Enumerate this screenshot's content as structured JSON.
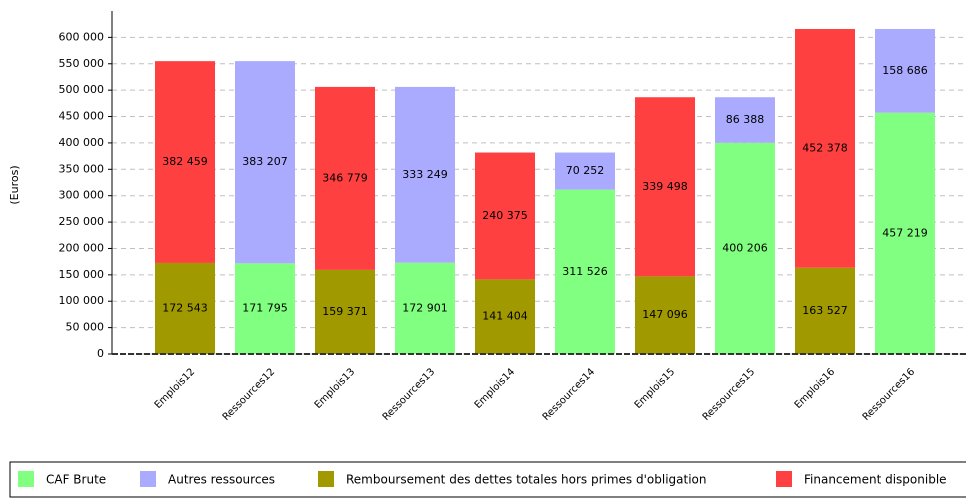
{
  "chart_data": {
    "type": "stacked_bar",
    "ylabel": "(Euros)",
    "categories": [
      "Emplois12",
      "Ressources12",
      "Emplois13",
      "Ressources13",
      "Emplois14",
      "Ressources14",
      "Emplois15",
      "Ressources15",
      "Emplois16",
      "Ressources16"
    ],
    "series": [
      {
        "name": "CAF Brute",
        "color": "#80ff80",
        "values": [
          null,
          171795,
          null,
          172901,
          null,
          311526,
          null,
          400206,
          null,
          457219
        ],
        "value_labels": [
          null,
          "171 795",
          null,
          "172 901",
          null,
          "311 526",
          null,
          "400 206",
          null,
          "457 219"
        ]
      },
      {
        "name": "Autres ressources",
        "color": "#aaaaff",
        "values": [
          null,
          383207,
          null,
          333249,
          null,
          70252,
          null,
          86388,
          null,
          158686
        ],
        "value_labels": [
          null,
          "383 207",
          null,
          "333 249",
          null,
          "70 252",
          null,
          "86 388",
          null,
          "158 686"
        ]
      },
      {
        "name": "Remboursement des dettes totales hors primes d'obligation",
        "color": "#a09a00",
        "values": [
          172543,
          null,
          159371,
          null,
          141404,
          null,
          147096,
          null,
          163527,
          null
        ],
        "value_labels": [
          "172 543",
          null,
          "159 371",
          null,
          "141 404",
          null,
          "147 096",
          null,
          "163 527",
          null
        ]
      },
      {
        "name": "Financement disponible",
        "color": "#ff4040",
        "values": [
          382459,
          null,
          346779,
          null,
          240375,
          null,
          339498,
          null,
          452378,
          null
        ],
        "value_labels": [
          "382 459",
          null,
          "346 779",
          null,
          "240 375",
          null,
          "339 498",
          null,
          "452 378",
          null
        ]
      }
    ],
    "ylim": [
      0,
      650000
    ],
    "yticks": [
      0,
      {
        "value": 50000,
        "label": "50 000"
      },
      {
        "value": 100000,
        "label": "100 000"
      },
      {
        "value": 150000,
        "label": "150 000"
      },
      {
        "value": 200000,
        "label": "200 000"
      },
      {
        "value": 250000,
        "label": "250 000"
      },
      {
        "value": 300000,
        "label": "300 000"
      },
      {
        "value": 350000,
        "label": "350 000"
      },
      {
        "value": 400000,
        "label": "400 000"
      },
      {
        "value": 450000,
        "label": "450 000"
      },
      {
        "value": 500000,
        "label": "500 000"
      },
      {
        "value": 550000,
        "label": "550 000"
      },
      {
        "value": 600000,
        "label": "600 000"
      }
    ],
    "grid": true
  }
}
